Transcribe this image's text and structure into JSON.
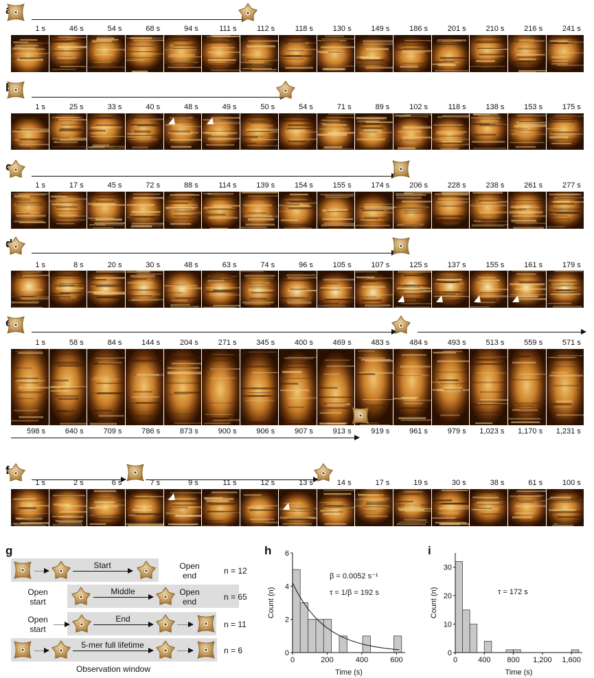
{
  "panels": [
    {
      "letter": "a",
      "times": [
        "1 s",
        "46 s",
        "54 s",
        "68 s",
        "94 s",
        "111 s",
        "112 s",
        "118 s",
        "130 s",
        "149 s",
        "186 s",
        "201 s",
        "210 s",
        "216 s",
        "241 s"
      ]
    },
    {
      "letter": "b",
      "times": [
        "1 s",
        "25 s",
        "33 s",
        "40 s",
        "48 s",
        "49 s",
        "50 s",
        "54 s",
        "71 s",
        "89 s",
        "102 s",
        "118 s",
        "138 s",
        "153 s",
        "175 s"
      ]
    },
    {
      "letter": "c",
      "times": [
        "1 s",
        "17 s",
        "45 s",
        "72 s",
        "88 s",
        "114 s",
        "139 s",
        "154 s",
        "155 s",
        "174 s",
        "206 s",
        "228 s",
        "238 s",
        "261 s",
        "277 s"
      ]
    },
    {
      "letter": "d",
      "times": [
        "1 s",
        "8 s",
        "20 s",
        "30 s",
        "48 s",
        "63 s",
        "74 s",
        "96 s",
        "105 s",
        "107 s",
        "125 s",
        "137 s",
        "155 s",
        "161 s",
        "179 s"
      ]
    },
    {
      "letter": "e",
      "times": [
        "1 s",
        "58 s",
        "84 s",
        "144 s",
        "204 s",
        "271 s",
        "345 s",
        "400 s",
        "469 s",
        "483 s",
        "484 s",
        "493 s",
        "513 s",
        "559 s",
        "571 s"
      ],
      "times2": [
        "598 s",
        "640 s",
        "709 s",
        "786 s",
        "873 s",
        "900 s",
        "906 s",
        "907 s",
        "913 s",
        "919 s",
        "961 s",
        "979 s",
        "1,023 s",
        "1,170 s",
        "1,231 s"
      ]
    },
    {
      "letter": "f",
      "times": [
        "1 s",
        "2 s",
        "6 s",
        "7 s",
        "9 s",
        "11 s",
        "12 s",
        "13 s",
        "14 s",
        "17 s",
        "19 s",
        "30 s",
        "38 s",
        "61 s",
        "100 s"
      ]
    }
  ],
  "panel_g": {
    "letter": "g",
    "rows": [
      {
        "left": "",
        "mid": "Start",
        "right": "Open end",
        "n": "n = 12"
      },
      {
        "left": "Open start",
        "mid": "Middle",
        "right": "Open end",
        "n": "n = 65"
      },
      {
        "left": "Open start",
        "mid": "End",
        "right": "",
        "n": "n = 11"
      },
      {
        "left": "",
        "mid": "5-mer full lifetime",
        "right": "",
        "n": "n = 6"
      }
    ],
    "footer": "Observation window"
  },
  "chart_data": [
    {
      "panel": "h",
      "type": "bar",
      "xlabel": "Time (s)",
      "ylabel": "Count (n)",
      "xlim": [
        0,
        650
      ],
      "ylim": [
        0,
        6
      ],
      "xticks": [
        "0",
        "200",
        "400",
        "600"
      ],
      "yticks": [
        "0",
        "2",
        "4",
        "6"
      ],
      "bin_width": 45,
      "x": [
        22,
        67,
        112,
        157,
        202,
        292,
        427,
        607
      ],
      "values": [
        5,
        3,
        2,
        2,
        2,
        1,
        1,
        1
      ],
      "annotations": [
        "β = 0.0052 s⁻¹",
        "τ = 1/β = 192 s"
      ],
      "fit": {
        "type": "exponential",
        "amplitude": 4.2,
        "rate": 0.0052
      }
    },
    {
      "panel": "i",
      "type": "bar",
      "xlabel": "Time (s)",
      "ylabel": "Count (n)",
      "xlim": [
        0,
        1750
      ],
      "ylim": [
        0,
        35
      ],
      "xticks": [
        "0",
        "400",
        "800",
        "1,200",
        "1,600"
      ],
      "yticks": [
        "0",
        "10",
        "20",
        "30"
      ],
      "bin_width": 100,
      "x": [
        50,
        150,
        250,
        450,
        750,
        850,
        1650
      ],
      "values": [
        32,
        15,
        10,
        4,
        1,
        1,
        1
      ],
      "annotations": [
        "τ = 172 s"
      ]
    }
  ]
}
